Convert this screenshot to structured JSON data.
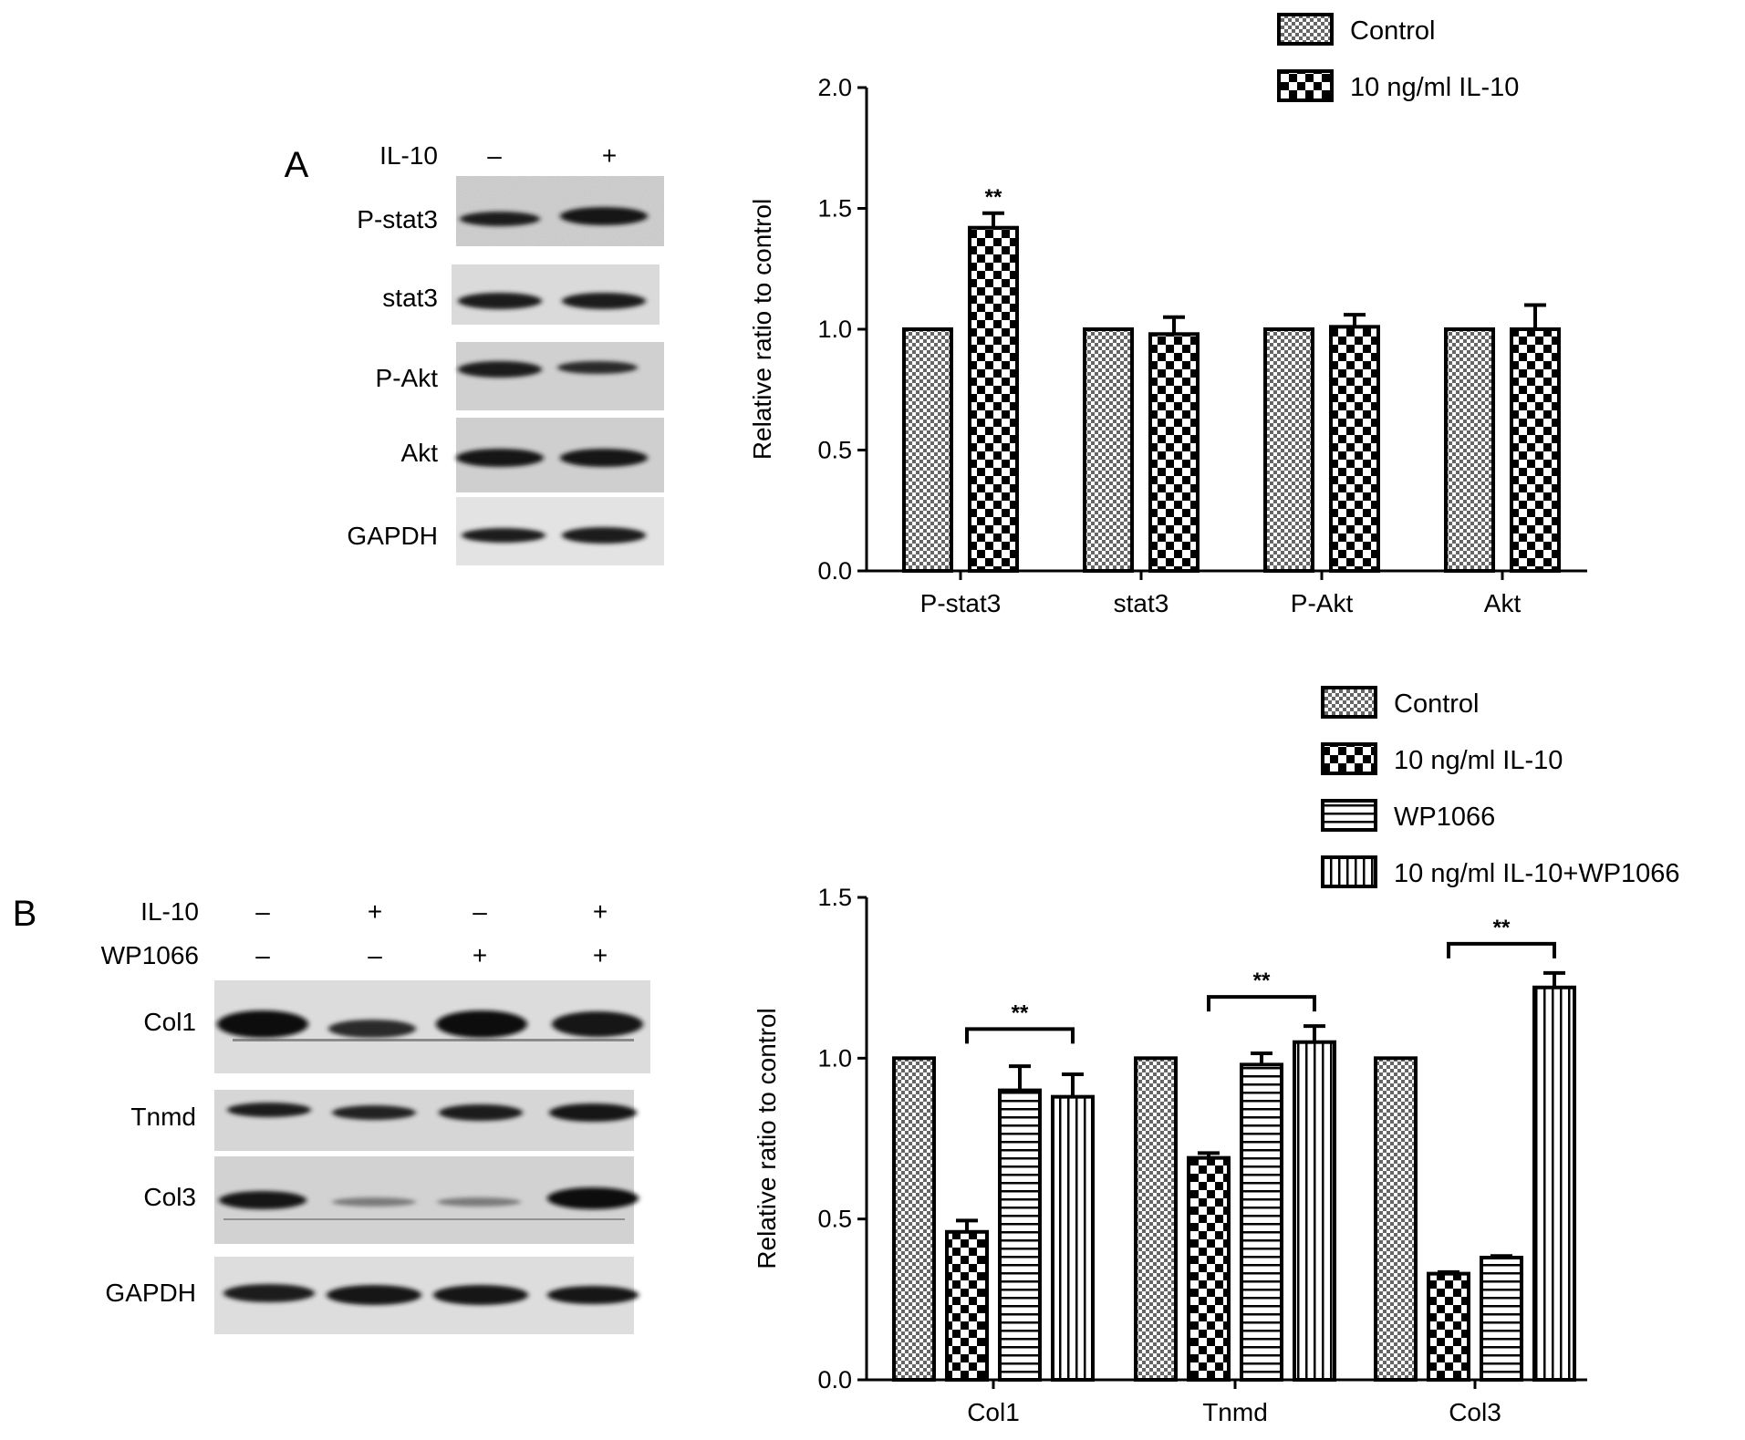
{
  "figure": {
    "panel_a": {
      "letter": "A",
      "blot": {
        "conditions": [
          {
            "label": "IL-10",
            "lanes": [
              "–",
              "+"
            ]
          }
        ],
        "bands": [
          "P-stat3",
          "stat3",
          "P-Akt",
          "Akt",
          "GAPDH"
        ]
      }
    },
    "panel_b": {
      "letter": "B",
      "blot": {
        "conditions": [
          {
            "label": "IL-10",
            "lanes": [
              "–",
              "+",
              "–",
              "+"
            ]
          },
          {
            "label": "WP1066",
            "lanes": [
              "–",
              "–",
              "+",
              "+"
            ]
          }
        ],
        "bands": [
          "Col1",
          "Tnmd",
          "Col3",
          "GAPDH"
        ]
      }
    }
  },
  "chart_data": [
    {
      "type": "bar",
      "title": "",
      "xlabel": "",
      "ylabel": "Relative ratio to control",
      "ylim": [
        0,
        2.0
      ],
      "yticks": [
        "0.0",
        "0.5",
        "1.0",
        "1.5",
        "2.0"
      ],
      "categories": [
        "P-stat3",
        "stat3",
        "P-Akt",
        "Akt"
      ],
      "legend_position": "top-right",
      "series": [
        {
          "name": "Control",
          "pattern": "fine-check",
          "values": [
            1.0,
            1.0,
            1.0,
            1.0
          ],
          "errors": [
            0,
            0,
            0,
            0
          ]
        },
        {
          "name": "10 ng/ml IL-10",
          "pattern": "coarse-check",
          "values": [
            1.42,
            0.98,
            1.01,
            1.0
          ],
          "errors": [
            0.06,
            0.07,
            0.05,
            0.1
          ]
        }
      ],
      "annotations": [
        {
          "text": "**",
          "category": "P-stat3",
          "series": 1
        }
      ]
    },
    {
      "type": "bar",
      "title": "",
      "xlabel": "",
      "ylabel": "Relative ratio to control",
      "ylim": [
        0,
        1.5
      ],
      "yticks": [
        "0.0",
        "0.5",
        "1.0",
        "1.5"
      ],
      "categories": [
        "Col1",
        "Tnmd",
        "Col3"
      ],
      "legend_position": "top-right",
      "series": [
        {
          "name": "Control",
          "pattern": "fine-check",
          "values": [
            1.0,
            1.0,
            1.0
          ],
          "errors": [
            0,
            0,
            0
          ]
        },
        {
          "name": "10 ng/ml IL-10",
          "pattern": "coarse-check",
          "values": [
            0.46,
            0.69,
            0.33
          ],
          "errors": [
            0.035,
            0.015,
            0.005
          ]
        },
        {
          "name": "WP1066",
          "pattern": "horizontal-stripes",
          "values": [
            0.9,
            0.98,
            0.38
          ],
          "errors": [
            0.075,
            0.035,
            0.005
          ]
        },
        {
          "name": "10 ng/ml IL-10+WP1066",
          "pattern": "vertical-stripes",
          "values": [
            0.88,
            1.05,
            1.22
          ],
          "errors": [
            0.07,
            0.05,
            0.045
          ]
        }
      ],
      "annotations": [
        {
          "text": "**",
          "category": "Col1",
          "from_series": 1,
          "to_series": 3
        },
        {
          "text": "**",
          "category": "Tnmd",
          "from_series": 1,
          "to_series": 3
        },
        {
          "text": "**",
          "category": "Col3",
          "from_series": 1,
          "to_series": 3
        }
      ]
    }
  ]
}
